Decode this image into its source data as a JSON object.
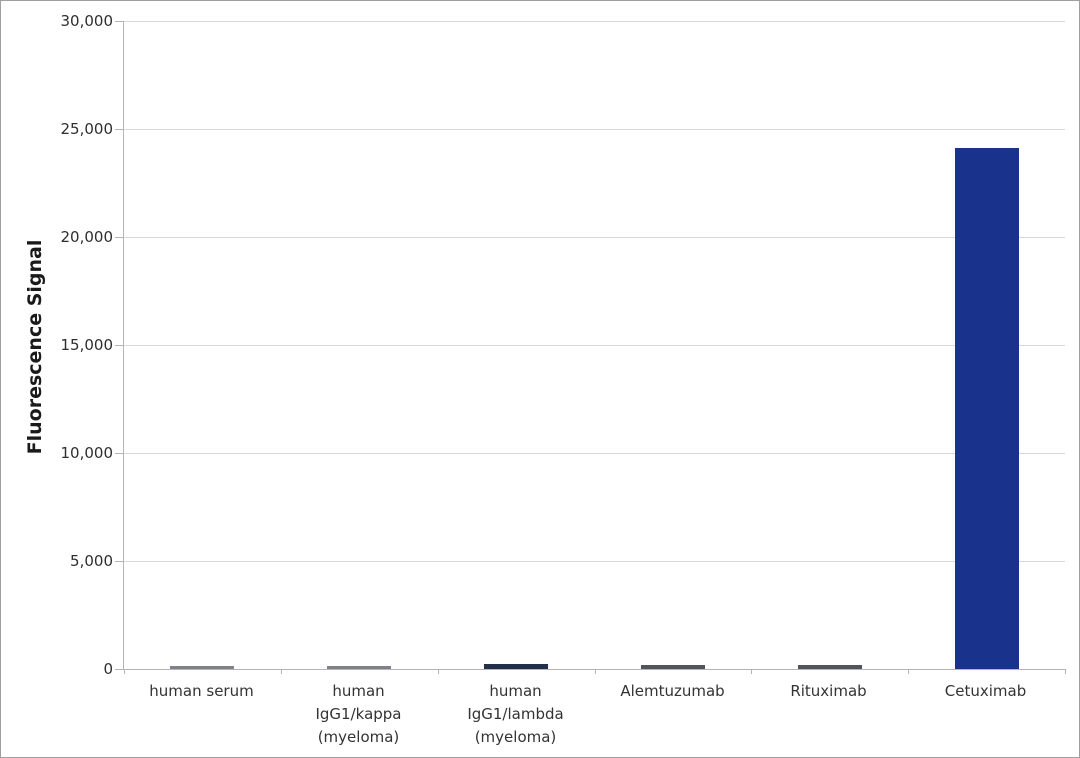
{
  "chart_data": {
    "type": "bar",
    "title": "",
    "ylabel": "Fluorescence Signal",
    "xlabel": "",
    "ylim": [
      0,
      30000
    ],
    "ytick_interval": 5000,
    "grid": "horizontal",
    "legend": "none",
    "background": "#ffffff",
    "yticks": [
      {
        "value": 0,
        "label": "0"
      },
      {
        "value": 5000,
        "label": "5,000"
      },
      {
        "value": 10000,
        "label": "10,000"
      },
      {
        "value": 15000,
        "label": "15,000"
      },
      {
        "value": 20000,
        "label": "20,000"
      },
      {
        "value": 25000,
        "label": "25,000"
      },
      {
        "value": 30000,
        "label": "30,000"
      }
    ],
    "categories": [
      "human serum",
      "human IgG1/kappa (myeloma)",
      "human IgG1/lambda (myeloma)",
      "Alemtuzumab",
      "Rituximab",
      "Cetuximab"
    ],
    "category_label_lines": [
      [
        "human serum"
      ],
      [
        "human",
        "IgG1/kappa",
        "(myeloma)"
      ],
      [
        "human",
        "IgG1/lambda",
        "(myeloma)"
      ],
      [
        "Alemtuzumab"
      ],
      [
        "Rituximab"
      ],
      [
        "Cetuximab"
      ]
    ],
    "values": [
      130,
      130,
      220,
      170,
      170,
      24100
    ],
    "bar_colors": [
      "#7e8187",
      "#7e8187",
      "#232f48",
      "#50555d",
      "#50555d",
      "#19328c"
    ],
    "colors": {
      "gridline": "#d9d9d9",
      "axis": "#b4b4b4",
      "text": "#333333",
      "primary_bar": "#19328c",
      "frame_border": "#9f9f9f"
    }
  }
}
